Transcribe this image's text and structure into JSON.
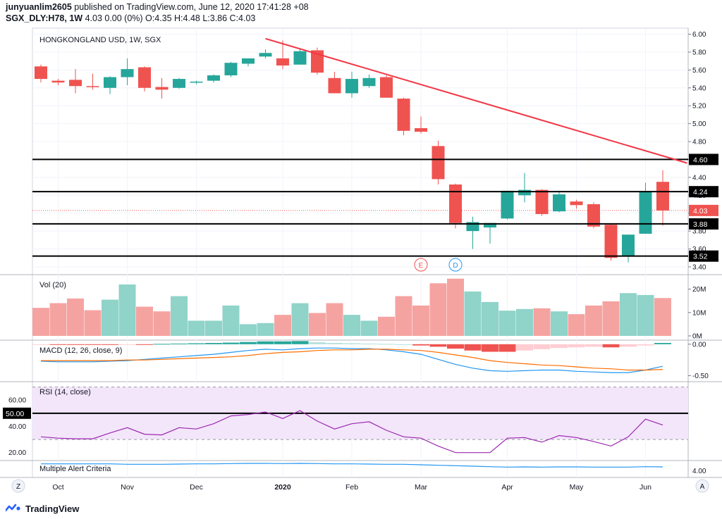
{
  "header": {
    "author": "junyuanlim2605",
    "published_text": "published on TradingView.com, June 12, 2020 17:41:28 +08",
    "symbol_line": "SGX_DLY:H78, 1W 4.03 0.00 (0%) O:4.35 H:4.48 L:3.86 C:4.03",
    "symbol": "SGX_DLY:H78, 1W",
    "ohlc": "4.03 0.00 (0%) O:4.35 H:4.48 L:3.86 C:4.03"
  },
  "footer": {
    "brand": "TradingView",
    "logo": "tradingview-logo-icon"
  },
  "colors": {
    "up": "#26a69a",
    "down": "#ef5350",
    "vol_up": "#8fd3c9",
    "vol_down": "#f5a3a1",
    "trendline": "#f23645",
    "level": "#000000",
    "macd": "#2196f3",
    "signal": "#ff6d00",
    "rsi": "#9c27b0",
    "rsi_band": "#f3e6fb",
    "alert": "#2196f3",
    "current_price": "#ef5350"
  },
  "chart_data": {
    "type": "candlestick",
    "title": "HONGKONGLAND USD, 1W, SGX",
    "y_axis_ticks": [
      "6.00",
      "5.80",
      "5.60",
      "5.40",
      "5.20",
      "5.00",
      "4.80",
      "4.60",
      "4.40",
      "4.20",
      "4.00",
      "3.80",
      "3.60",
      "3.40"
    ],
    "ylim": [
      3.36,
      6.02
    ],
    "x_axis_labels": [
      {
        "label": "Oct",
        "index": 1
      },
      {
        "label": "Nov",
        "index": 5
      },
      {
        "label": "Dec",
        "index": 9
      },
      {
        "label": "2020",
        "index": 14
      },
      {
        "label": "Feb",
        "index": 18
      },
      {
        "label": "Mar",
        "index": 22
      },
      {
        "label": "Apr",
        "index": 27
      },
      {
        "label": "May",
        "index": 31
      },
      {
        "label": "Jun",
        "index": 35
      }
    ],
    "candles": [
      {
        "o": 5.64,
        "h": 5.66,
        "l": 5.46,
        "c": 5.5
      },
      {
        "o": 5.48,
        "h": 5.5,
        "l": 5.43,
        "c": 5.46
      },
      {
        "o": 5.49,
        "h": 5.61,
        "l": 5.34,
        "c": 5.42
      },
      {
        "o": 5.42,
        "h": 5.56,
        "l": 5.38,
        "c": 5.41
      },
      {
        "o": 5.4,
        "h": 5.53,
        "l": 5.33,
        "c": 5.52
      },
      {
        "o": 5.52,
        "h": 5.73,
        "l": 5.43,
        "c": 5.61
      },
      {
        "o": 5.63,
        "h": 5.64,
        "l": 5.36,
        "c": 5.4
      },
      {
        "o": 5.41,
        "h": 5.51,
        "l": 5.28,
        "c": 5.38
      },
      {
        "o": 5.4,
        "h": 5.51,
        "l": 5.39,
        "c": 5.5
      },
      {
        "o": 5.46,
        "h": 5.48,
        "l": 5.44,
        "c": 5.47
      },
      {
        "o": 5.48,
        "h": 5.55,
        "l": 5.46,
        "c": 5.54
      },
      {
        "o": 5.54,
        "h": 5.69,
        "l": 5.52,
        "c": 5.68
      },
      {
        "o": 5.67,
        "h": 5.72,
        "l": 5.64,
        "c": 5.73
      },
      {
        "o": 5.75,
        "h": 5.83,
        "l": 5.73,
        "c": 5.79
      },
      {
        "o": 5.73,
        "h": 5.93,
        "l": 5.61,
        "c": 5.65
      },
      {
        "o": 5.66,
        "h": 5.83,
        "l": 5.66,
        "c": 5.81
      },
      {
        "o": 5.82,
        "h": 5.85,
        "l": 5.55,
        "c": 5.57
      },
      {
        "o": 5.51,
        "h": 5.58,
        "l": 5.34,
        "c": 5.34
      },
      {
        "o": 5.34,
        "h": 5.58,
        "l": 5.29,
        "c": 5.5
      },
      {
        "o": 5.42,
        "h": 5.55,
        "l": 5.4,
        "c": 5.51
      },
      {
        "o": 5.52,
        "h": 5.54,
        "l": 5.29,
        "c": 5.29
      },
      {
        "o": 5.28,
        "h": 5.29,
        "l": 4.87,
        "c": 4.92
      },
      {
        "o": 4.95,
        "h": 5.08,
        "l": 4.89,
        "c": 4.91
      },
      {
        "o": 4.75,
        "h": 4.81,
        "l": 4.32,
        "c": 4.38
      },
      {
        "o": 4.32,
        "h": 4.33,
        "l": 3.83,
        "c": 3.89
      },
      {
        "o": 3.8,
        "h": 3.96,
        "l": 3.6,
        "c": 3.9
      },
      {
        "o": 3.84,
        "h": 3.89,
        "l": 3.66,
        "c": 3.89
      },
      {
        "o": 3.94,
        "h": 4.25,
        "l": 3.93,
        "c": 4.25
      },
      {
        "o": 4.2,
        "h": 4.45,
        "l": 4.12,
        "c": 4.26
      },
      {
        "o": 4.26,
        "h": 4.27,
        "l": 3.97,
        "c": 3.99
      },
      {
        "o": 4.02,
        "h": 4.25,
        "l": 4.01,
        "c": 4.21
      },
      {
        "o": 4.13,
        "h": 4.15,
        "l": 4.05,
        "c": 4.09
      },
      {
        "o": 4.1,
        "h": 4.12,
        "l": 3.83,
        "c": 3.85
      },
      {
        "o": 3.87,
        "h": 3.88,
        "l": 3.47,
        "c": 3.5
      },
      {
        "o": 3.52,
        "h": 3.76,
        "l": 3.45,
        "c": 3.76
      },
      {
        "o": 3.77,
        "h": 4.34,
        "l": 3.77,
        "c": 4.24
      },
      {
        "o": 4.35,
        "h": 4.48,
        "l": 3.86,
        "c": 4.03
      }
    ],
    "horizontal_levels": [
      {
        "value": 4.6,
        "label": "4.60"
      },
      {
        "value": 4.24,
        "label": "4.24"
      },
      {
        "value": 3.88,
        "label": "3.88"
      },
      {
        "value": 3.52,
        "label": "3.52"
      }
    ],
    "current_price": {
      "value": 4.03,
      "label": "4.03"
    },
    "trendline": {
      "from": {
        "index": 13,
        "price": 5.95
      },
      "to": {
        "index": 37.4,
        "price": 4.56
      }
    },
    "events": [
      {
        "label": "E",
        "index": 22,
        "color": "#ef5350"
      },
      {
        "label": "D",
        "index": 24,
        "color": "#2196f3"
      }
    ],
    "volume": {
      "title": "Vol (20)",
      "ticks": [
        "20M",
        "10M",
        "0M"
      ],
      "ymax": 25,
      "values": [
        12,
        14,
        16,
        11,
        15.5,
        22,
        12.5,
        10.5,
        17,
        6.5,
        6.5,
        13,
        5,
        5.5,
        9,
        14,
        9.8,
        14,
        9,
        6.5,
        8.2,
        17,
        13,
        22.5,
        24.5,
        19,
        14.5,
        10.8,
        11.5,
        11.8,
        10.5,
        9.3,
        13,
        14.8,
        18.3,
        17.5,
        16.2
      ]
    },
    "macd": {
      "title": "MACD (12, 26, close, 9)",
      "ticks": [
        "0.00",
        "-0.50"
      ],
      "ylim": [
        -0.55,
        0.02
      ],
      "histogram": [
        -0.01,
        -0.01,
        -0.01,
        -0.01,
        -0.01,
        -0.005,
        -0.005,
        0.005,
        0.01,
        0.015,
        0.02,
        0.025,
        0.035,
        0.045,
        0.045,
        0.05,
        0.03,
        0.02,
        0.015,
        0.01,
        0.005,
        0.0,
        -0.02,
        -0.04,
        -0.07,
        -0.1,
        -0.12,
        -0.12,
        -0.1,
        -0.08,
        -0.06,
        -0.05,
        -0.04,
        -0.05,
        -0.04,
        -0.02,
        0.02
      ],
      "macd_line": [
        -0.27,
        -0.28,
        -0.28,
        -0.28,
        -0.27,
        -0.26,
        -0.24,
        -0.22,
        -0.2,
        -0.18,
        -0.16,
        -0.13,
        -0.1,
        -0.08,
        -0.09,
        -0.07,
        -0.06,
        -0.06,
        -0.07,
        -0.07,
        -0.09,
        -0.12,
        -0.16,
        -0.24,
        -0.32,
        -0.38,
        -0.42,
        -0.43,
        -0.42,
        -0.41,
        -0.41,
        -0.43,
        -0.44,
        -0.45,
        -0.45,
        -0.41,
        -0.35
      ],
      "signal_line": [
        -0.26,
        -0.26,
        -0.26,
        -0.26,
        -0.26,
        -0.25,
        -0.25,
        -0.24,
        -0.23,
        -0.22,
        -0.21,
        -0.2,
        -0.18,
        -0.15,
        -0.13,
        -0.12,
        -0.1,
        -0.09,
        -0.09,
        -0.08,
        -0.08,
        -0.09,
        -0.1,
        -0.13,
        -0.17,
        -0.21,
        -0.26,
        -0.29,
        -0.31,
        -0.33,
        -0.34,
        -0.36,
        -0.38,
        -0.39,
        -0.41,
        -0.41,
        -0.4
      ]
    },
    "rsi": {
      "title": "RSI (14, close)",
      "ticks": [
        "60.00",
        "40.00",
        "20.00"
      ],
      "highlight_label": "50.00",
      "ylim": [
        15,
        73
      ],
      "band": [
        30,
        70
      ],
      "mid": 50,
      "values": [
        32,
        31,
        30.5,
        30.5,
        35,
        39,
        34,
        33.5,
        39,
        38,
        42,
        48,
        49,
        51,
        46,
        52,
        44,
        38,
        42,
        43.5,
        37,
        32,
        31,
        25,
        20,
        20,
        20,
        31,
        31.5,
        28,
        33,
        31.5,
        28.5,
        25,
        32,
        45.5,
        41
      ]
    },
    "alert": {
      "title": "Multiple Alert Criteria",
      "tick": "4.00",
      "ylim": [
        2,
        5
      ],
      "values": [
        4.6,
        4.6,
        4.6,
        4.6,
        4.6,
        4.5,
        4.5,
        4.5,
        4.55,
        4.6,
        4.6,
        4.65,
        4.7,
        4.7,
        4.65,
        4.7,
        4.65,
        4.6,
        4.6,
        4.55,
        4.5,
        4.5,
        4.4,
        4.3,
        4.2,
        4.1,
        4.0,
        3.9,
        3.95,
        3.9,
        3.95,
        3.95,
        3.9,
        3.9,
        3.9,
        4.0,
        3.95
      ]
    },
    "nav_buttons": {
      "left": "Z",
      "right": "A"
    }
  }
}
